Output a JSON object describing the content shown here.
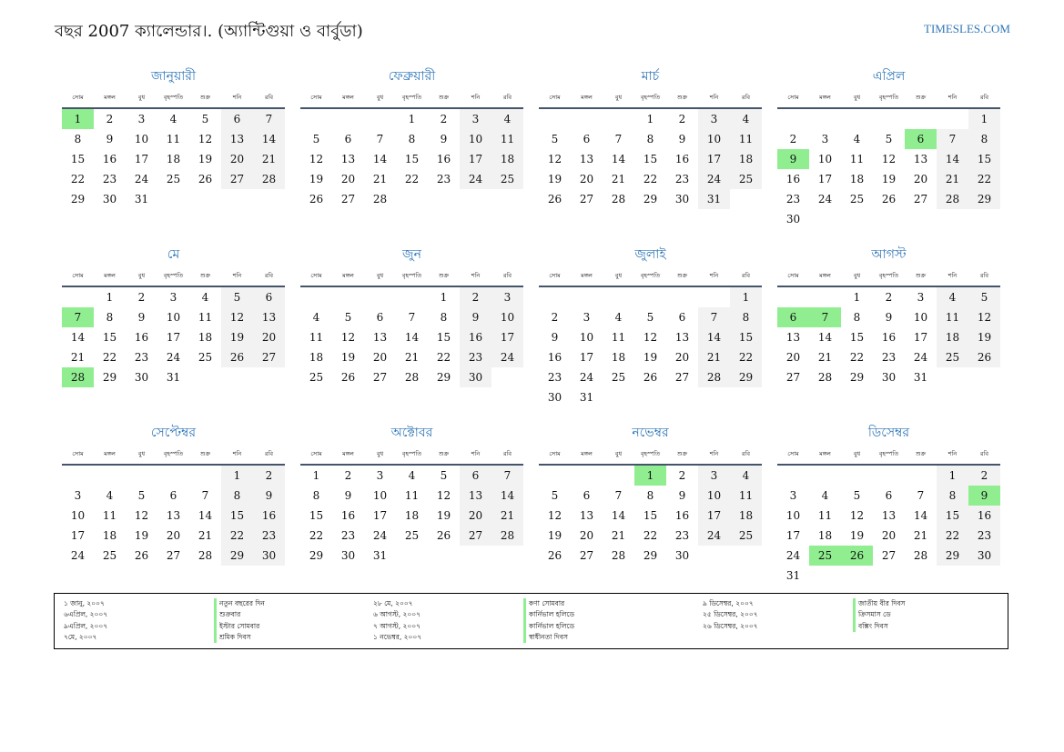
{
  "header": {
    "title": "বছর 2007 ক্যালেন্ডার।. (অ্যান্টিগুয়া ও বার্বুডা)",
    "site": "TIMESLES.COM"
  },
  "weekdays": [
    "সোম",
    "মঙ্গল",
    "বুধ",
    "বৃহস্পতি",
    "শুক্র",
    "শনি",
    "রবি"
  ],
  "months": [
    {
      "name": "জানুয়ারী",
      "offset": 0,
      "days": 31,
      "holidays": [
        1
      ]
    },
    {
      "name": "ফেব্রুয়ারী",
      "offset": 3,
      "days": 28,
      "holidays": []
    },
    {
      "name": "মার্চ",
      "offset": 3,
      "days": 31,
      "holidays": []
    },
    {
      "name": "এপ্রিল",
      "offset": 6,
      "days": 30,
      "holidays": [
        6,
        9
      ]
    },
    {
      "name": "মে",
      "offset": 1,
      "days": 31,
      "holidays": [
        7,
        28
      ]
    },
    {
      "name": "জুন",
      "offset": 4,
      "days": 30,
      "holidays": []
    },
    {
      "name": "জুলাই",
      "offset": 6,
      "days": 31,
      "holidays": []
    },
    {
      "name": "আগস্ট",
      "offset": 2,
      "days": 31,
      "holidays": [
        6,
        7
      ]
    },
    {
      "name": "সেপ্টেম্বর",
      "offset": 5,
      "days": 30,
      "holidays": []
    },
    {
      "name": "অক্টোবর",
      "offset": 0,
      "days": 31,
      "holidays": []
    },
    {
      "name": "নভেম্বর",
      "offset": 3,
      "days": 30,
      "holidays": [
        1
      ]
    },
    {
      "name": "ডিসেম্বর",
      "offset": 5,
      "days": 31,
      "holidays": [
        9,
        25,
        26
      ]
    }
  ],
  "legend": [
    {
      "date": "১ জানু, ২০০৭",
      "name": "নতুন বছরের দিন"
    },
    {
      "date": "৬এপ্রিল, ২০০৭",
      "name": "শুক্রবার"
    },
    {
      "date": "৯এপ্রিল, ২০০৭",
      "name": "ইস্টার সোমবার"
    },
    {
      "date": "৭মে, ২০০৭",
      "name": "শ্রমিক দিবস"
    },
    {
      "date": "২৮ মে, ২০০৭",
      "name": "কণা সোমবার"
    },
    {
      "date": "৬ আগস্ট, ২০০৭",
      "name": "কার্নিভাল হলিডে"
    },
    {
      "date": "৭ আগস্ট, ২০০৭",
      "name": "কার্নিভাল হলিডে"
    },
    {
      "date": "১ নভেম্বর, ২০০৭",
      "name": "স্বাধীনতা দিবস"
    },
    {
      "date": "৯ ডিসেম্বর, ২০০৭",
      "name": "জাতীয় বীর দিবস"
    },
    {
      "date": "২৫ ডিসেম্বর, ২০০৭",
      "name": "ক্রিসমাস ডে"
    },
    {
      "date": "২৬ ডিসেম্বর, ২০০৭",
      "name": "বক্সিং দিবস"
    }
  ]
}
